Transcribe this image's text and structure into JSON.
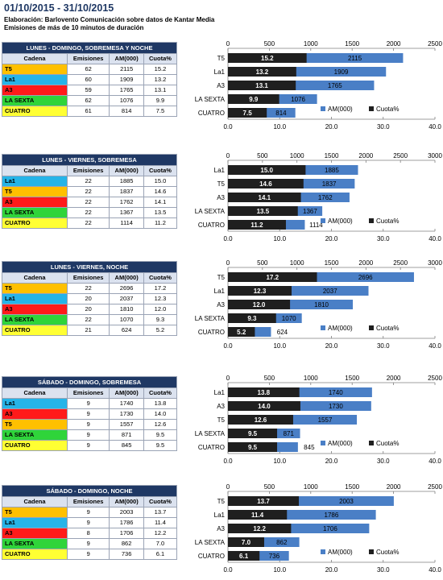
{
  "header": {
    "date_range": "01/10/2015 - 31/10/2015",
    "source": "Elaboración: Barlovento Comunicación sobre datos de Kantar Media",
    "note": "Emisiones de más de 10 minutos de duración"
  },
  "colors": {
    "table_title_bg": "#1f3864",
    "header_bg": "#dbe2ef",
    "am_bar": "#4a7fc6",
    "cuota_bar": "#1f1f1f",
    "channels": {
      "T5": "#ffc000",
      "La1": "#26b4e8",
      "A3": "#ff1a1a",
      "LA SEXTA": "#2fd43a",
      "CUATRO": "#ffff33"
    }
  },
  "table_headers": [
    "Cadena",
    "Emisiones",
    "AM(000)",
    "Cuota%"
  ],
  "legend": {
    "am": "AM(000)",
    "cuota": "Cuota%"
  },
  "sections": [
    {
      "title": "LUNES - DOMINGO, SOBREMESA Y NOCHE",
      "rows": [
        {
          "cadena": "T5",
          "emisiones": "62",
          "am": "2115",
          "cuota": "15.2"
        },
        {
          "cadena": "La1",
          "emisiones": "60",
          "am": "1909",
          "cuota": "13.2"
        },
        {
          "cadena": "A3",
          "emisiones": "59",
          "am": "1765",
          "cuota": "13.1"
        },
        {
          "cadena": "LA SEXTA",
          "emisiones": "62",
          "am": "1076",
          "cuota": "9.9"
        },
        {
          "cadena": "CUATRO",
          "emisiones": "61",
          "am": "814",
          "cuota": "7.5"
        }
      ]
    },
    {
      "title": "LUNES - VIERNES, SOBREMESA",
      "rows": [
        {
          "cadena": "La1",
          "emisiones": "22",
          "am": "1885",
          "cuota": "15.0"
        },
        {
          "cadena": "T5",
          "emisiones": "22",
          "am": "1837",
          "cuota": "14.6"
        },
        {
          "cadena": "A3",
          "emisiones": "22",
          "am": "1762",
          "cuota": "14.1"
        },
        {
          "cadena": "LA SEXTA",
          "emisiones": "22",
          "am": "1367",
          "cuota": "13.5"
        },
        {
          "cadena": "CUATRO",
          "emisiones": "22",
          "am": "1114",
          "cuota": "11.2"
        }
      ]
    },
    {
      "title": "LUNES - VIERNES, NOCHE",
      "rows": [
        {
          "cadena": "T5",
          "emisiones": "22",
          "am": "2696",
          "cuota": "17.2"
        },
        {
          "cadena": "La1",
          "emisiones": "20",
          "am": "2037",
          "cuota": "12.3"
        },
        {
          "cadena": "A3",
          "emisiones": "20",
          "am": "1810",
          "cuota": "12.0"
        },
        {
          "cadena": "LA SEXTA",
          "emisiones": "22",
          "am": "1070",
          "cuota": "9.3"
        },
        {
          "cadena": "CUATRO",
          "emisiones": "21",
          "am": "624",
          "cuota": "5.2"
        }
      ]
    },
    {
      "title": "SÁBADO - DOMINGO, SOBREMESA",
      "rows": [
        {
          "cadena": "La1",
          "emisiones": "9",
          "am": "1740",
          "cuota": "13.8"
        },
        {
          "cadena": "A3",
          "emisiones": "9",
          "am": "1730",
          "cuota": "14.0"
        },
        {
          "cadena": "T5",
          "emisiones": "9",
          "am": "1557",
          "cuota": "12.6"
        },
        {
          "cadena": "LA SEXTA",
          "emisiones": "9",
          "am": "871",
          "cuota": "9.5"
        },
        {
          "cadena": "CUATRO",
          "emisiones": "9",
          "am": "845",
          "cuota": "9.5"
        }
      ]
    },
    {
      "title": "SÁBADO - DOMINGO, NOCHE",
      "rows": [
        {
          "cadena": "T5",
          "emisiones": "9",
          "am": "2003",
          "cuota": "13.7"
        },
        {
          "cadena": "La1",
          "emisiones": "9",
          "am": "1786",
          "cuota": "11.4"
        },
        {
          "cadena": "A3",
          "emisiones": "8",
          "am": "1706",
          "cuota": "12.2"
        },
        {
          "cadena": "LA SEXTA",
          "emisiones": "9",
          "am": "862",
          "cuota": "7.0"
        },
        {
          "cadena": "CUATRO",
          "emisiones": "9",
          "am": "736",
          "cuota": "6.1"
        }
      ]
    }
  ],
  "chart_data": [
    {
      "type": "bar",
      "orientation": "horizontal",
      "categories": [
        "T5",
        "La1",
        "A3",
        "LA SEXTA",
        "CUATRO"
      ],
      "series": [
        {
          "name": "AM(000)",
          "axis": "top",
          "values": [
            2115,
            1909,
            1765,
            1076,
            814
          ]
        },
        {
          "name": "Cuota%",
          "axis": "bottom",
          "values": [
            15.2,
            13.2,
            13.1,
            9.9,
            7.5
          ]
        }
      ],
      "top_axis": {
        "range": [
          0,
          2500
        ],
        "ticks": [
          "0",
          "500",
          "1000",
          "1500",
          "2000",
          "2500"
        ]
      },
      "bottom_axis": {
        "range": [
          0,
          40
        ],
        "ticks": [
          "0.0",
          "10.0",
          "20.0",
          "30.0",
          "40.0"
        ]
      },
      "legend": "bottom-right"
    },
    {
      "type": "bar",
      "orientation": "horizontal",
      "categories": [
        "La1",
        "T5",
        "A3",
        "LA SEXTA",
        "CUATRO"
      ],
      "series": [
        {
          "name": "AM(000)",
          "axis": "top",
          "values": [
            1885,
            1837,
            1762,
            1367,
            1114
          ]
        },
        {
          "name": "Cuota%",
          "axis": "bottom",
          "values": [
            15.0,
            14.6,
            14.1,
            13.5,
            11.2
          ]
        }
      ],
      "top_axis": {
        "range": [
          0,
          3000
        ],
        "ticks": [
          "0",
          "500",
          "1000",
          "1500",
          "2000",
          "2500",
          "3000"
        ]
      },
      "bottom_axis": {
        "range": [
          0,
          40
        ],
        "ticks": [
          "0.0",
          "10.0",
          "20.0",
          "30.0",
          "40.0"
        ]
      },
      "legend": "bottom-right"
    },
    {
      "type": "bar",
      "orientation": "horizontal",
      "categories": [
        "T5",
        "La1",
        "A3",
        "LA SEXTA",
        "CUATRO"
      ],
      "series": [
        {
          "name": "AM(000)",
          "axis": "top",
          "values": [
            2696,
            2037,
            1810,
            1070,
            624
          ]
        },
        {
          "name": "Cuota%",
          "axis": "bottom",
          "values": [
            17.2,
            12.3,
            12.0,
            9.3,
            5.2
          ]
        }
      ],
      "top_axis": {
        "range": [
          0,
          3000
        ],
        "ticks": [
          "0",
          "500",
          "1000",
          "1500",
          "2000",
          "2500",
          "3000"
        ]
      },
      "bottom_axis": {
        "range": [
          0,
          40
        ],
        "ticks": [
          "0.0",
          "10.0",
          "20.0",
          "30.0",
          "40.0"
        ]
      },
      "legend": "bottom-right"
    },
    {
      "type": "bar",
      "orientation": "horizontal",
      "categories": [
        "La1",
        "A3",
        "T5",
        "LA SEXTA",
        "CUATRO"
      ],
      "series": [
        {
          "name": "AM(000)",
          "axis": "top",
          "values": [
            1740,
            1730,
            1557,
            871,
            845
          ]
        },
        {
          "name": "Cuota%",
          "axis": "bottom",
          "values": [
            13.8,
            14.0,
            12.6,
            9.5,
            9.5
          ]
        }
      ],
      "top_axis": {
        "range": [
          0,
          2500
        ],
        "ticks": [
          "0",
          "500",
          "1000",
          "1500",
          "2000",
          "2500"
        ]
      },
      "bottom_axis": {
        "range": [
          0,
          40
        ],
        "ticks": [
          "0.0",
          "10.0",
          "20.0",
          "30.0",
          "40.0"
        ]
      },
      "legend": "bottom-right"
    },
    {
      "type": "bar",
      "orientation": "horizontal",
      "categories": [
        "T5",
        "La1",
        "A3",
        "LA SEXTA",
        "CUATRO"
      ],
      "series": [
        {
          "name": "AM(000)",
          "axis": "top",
          "values": [
            2003,
            1786,
            1706,
            862,
            736
          ]
        },
        {
          "name": "Cuota%",
          "axis": "bottom",
          "values": [
            13.7,
            11.4,
            12.2,
            7.0,
            6.1
          ]
        }
      ],
      "top_axis": {
        "range": [
          0,
          2500
        ],
        "ticks": [
          "0",
          "500",
          "1000",
          "1500",
          "2000",
          "2500"
        ]
      },
      "bottom_axis": {
        "range": [
          0,
          40
        ],
        "ticks": [
          "0.0",
          "10.0",
          "20.0",
          "30.0",
          "40.0"
        ]
      },
      "legend": "bottom-right"
    }
  ]
}
